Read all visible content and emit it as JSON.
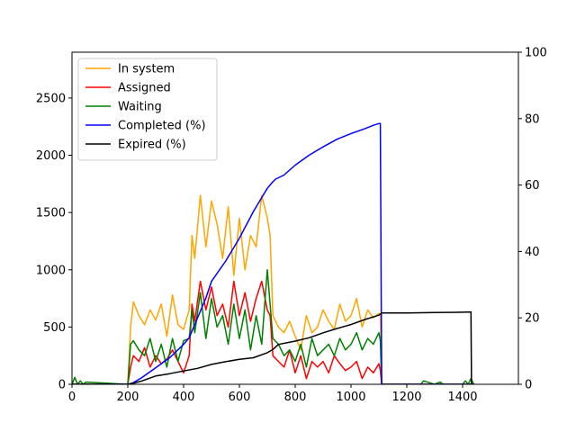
{
  "chart_data": {
    "type": "line",
    "title": "",
    "xlabel": "",
    "ylabel": "",
    "y2label": "",
    "grid": false,
    "legend": "top-left",
    "xlim": [
      0,
      1600
    ],
    "ylim": [
      0,
      2900
    ],
    "y2lim": [
      0,
      100
    ],
    "xticks": [
      0,
      200,
      400,
      600,
      800,
      1000,
      1200,
      1400
    ],
    "yticks": [
      0,
      500,
      1000,
      1500,
      2000,
      2500
    ],
    "y2ticks": [
      0,
      20,
      40,
      60,
      80,
      100
    ],
    "series": [
      {
        "name": "In system",
        "axis": "left",
        "color": "#ffa500",
        "x": [
          0,
          10,
          20,
          200,
          210,
          220,
          240,
          260,
          280,
          300,
          320,
          340,
          360,
          380,
          400,
          420,
          430,
          440,
          460,
          480,
          500,
          520,
          540,
          560,
          580,
          600,
          620,
          640,
          660,
          680,
          700,
          710,
          720,
          740,
          760,
          780,
          800,
          820,
          840,
          860,
          880,
          900,
          920,
          940,
          960,
          980,
          1000,
          1020,
          1040,
          1060,
          1080,
          1100,
          1105,
          1110,
          1200,
          1300,
          1400,
          1430,
          1440
        ],
        "y": [
          0,
          60,
          0,
          0,
          500,
          720,
          600,
          520,
          650,
          560,
          700,
          420,
          780,
          520,
          480,
          650,
          1300,
          1100,
          1650,
          1200,
          1600,
          1400,
          1100,
          1550,
          950,
          1450,
          1000,
          1300,
          1200,
          1650,
          1450,
          1300,
          600,
          500,
          450,
          550,
          420,
          300,
          600,
          450,
          500,
          650,
          550,
          480,
          700,
          550,
          600,
          750,
          500,
          650,
          580,
          620,
          600,
          0,
          0,
          0,
          0,
          0,
          0
        ]
      },
      {
        "name": "Assigned",
        "axis": "left",
        "color": "#ff0000",
        "x": [
          0,
          200,
          210,
          220,
          240,
          260,
          280,
          300,
          320,
          340,
          360,
          380,
          400,
          420,
          430,
          440,
          460,
          480,
          500,
          520,
          540,
          560,
          580,
          600,
          620,
          640,
          660,
          680,
          700,
          710,
          720,
          740,
          760,
          780,
          800,
          820,
          840,
          860,
          880,
          900,
          920,
          940,
          960,
          980,
          1000,
          1020,
          1040,
          1060,
          1080,
          1100,
          1105,
          1110,
          1440
        ],
        "y": [
          0,
          0,
          150,
          250,
          200,
          320,
          150,
          250,
          180,
          220,
          300,
          200,
          100,
          250,
          700,
          550,
          900,
          650,
          850,
          600,
          700,
          500,
          900,
          600,
          800,
          550,
          750,
          900,
          650,
          600,
          250,
          200,
          150,
          300,
          100,
          250,
          50,
          200,
          150,
          200,
          100,
          250,
          180,
          120,
          150,
          200,
          50,
          150,
          100,
          180,
          120,
          0,
          0
        ]
      },
      {
        "name": "Waiting",
        "axis": "left",
        "color": "#008000",
        "x": [
          0,
          10,
          20,
          30,
          40,
          50,
          200,
          210,
          220,
          240,
          260,
          280,
          300,
          320,
          340,
          360,
          380,
          400,
          420,
          430,
          440,
          460,
          480,
          500,
          520,
          540,
          560,
          580,
          600,
          620,
          640,
          660,
          680,
          700,
          710,
          720,
          740,
          760,
          780,
          800,
          820,
          840,
          860,
          880,
          900,
          920,
          940,
          960,
          980,
          1000,
          1020,
          1040,
          1060,
          1080,
          1100,
          1105,
          1110,
          1200,
          1250,
          1260,
          1300,
          1320,
          1330,
          1400,
          1410,
          1420,
          1430,
          1440
        ],
        "y": [
          0,
          60,
          0,
          30,
          0,
          20,
          0,
          350,
          380,
          300,
          250,
          400,
          200,
          350,
          150,
          400,
          200,
          380,
          400,
          650,
          450,
          800,
          400,
          750,
          500,
          600,
          350,
          700,
          400,
          650,
          300,
          600,
          350,
          1000,
          700,
          400,
          350,
          250,
          300,
          200,
          350,
          150,
          400,
          250,
          300,
          350,
          250,
          400,
          300,
          350,
          450,
          300,
          400,
          350,
          450,
          380,
          0,
          0,
          0,
          30,
          0,
          20,
          0,
          0,
          30,
          0,
          50,
          0
        ]
      },
      {
        "name": "Completed (%)",
        "axis": "right",
        "color": "#0000ff",
        "x": [
          0,
          200,
          220,
          250,
          300,
          350,
          400,
          420,
          440,
          460,
          480,
          500,
          550,
          600,
          650,
          700,
          720,
          730,
          760,
          800,
          850,
          900,
          950,
          1000,
          1050,
          1080,
          1100,
          1105,
          1110,
          1440
        ],
        "y": [
          0,
          0,
          0.5,
          2,
          5,
          8,
          12,
          14,
          18,
          22,
          26,
          31,
          37,
          44,
          52,
          59,
          61,
          61.8,
          63,
          66,
          69,
          71.5,
          73.8,
          75.5,
          77,
          78,
          78.5,
          78.5,
          0,
          0
        ]
      },
      {
        "name": "Expired (%)",
        "axis": "right",
        "color": "#000000",
        "x": [
          0,
          200,
          220,
          250,
          300,
          350,
          400,
          450,
          500,
          550,
          600,
          650,
          700,
          720,
          740,
          800,
          850,
          900,
          950,
          1000,
          1050,
          1100,
          1110,
          1200,
          1300,
          1400,
          1430,
          1432,
          1440
        ],
        "y": [
          0,
          0,
          0.3,
          1,
          2.5,
          3.2,
          4,
          4.8,
          6,
          6.8,
          7.5,
          8,
          9.5,
          10.5,
          12,
          13,
          14,
          15.5,
          16.8,
          18,
          19.5,
          20.8,
          21.5,
          21.5,
          21.6,
          21.7,
          21.8,
          0,
          0
        ]
      }
    ]
  }
}
